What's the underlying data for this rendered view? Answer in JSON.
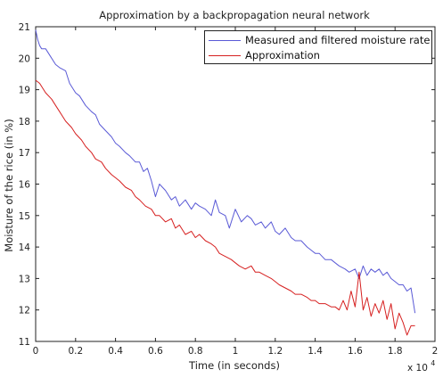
{
  "chart_data": {
    "type": "line",
    "title": "Approximation by a backpropagation neural network",
    "xlabel": "Time (in seconds)",
    "ylabel": "Moisture of the rice (in %)",
    "x_multiplier_label": "x 10",
    "x_multiplier_exponent": "4",
    "xlim": [
      0,
      2
    ],
    "ylim": [
      11,
      21
    ],
    "xticks": [
      "0",
      "0.2",
      "0.4",
      "0.6",
      "0.8",
      "1",
      "1.2",
      "1.4",
      "1.6",
      "1.8",
      "2"
    ],
    "yticks": [
      "11",
      "12",
      "13",
      "14",
      "15",
      "16",
      "17",
      "18",
      "19",
      "20",
      "21"
    ],
    "legend_position": "top-right",
    "grid": false,
    "series": [
      {
        "name": "Measured and filtered moisture rate",
        "color": "#5a5ad6",
        "x": [
          0,
          0.01,
          0.02,
          0.03,
          0.05,
          0.07,
          0.1,
          0.12,
          0.15,
          0.17,
          0.2,
          0.22,
          0.25,
          0.28,
          0.3,
          0.32,
          0.35,
          0.38,
          0.4,
          0.42,
          0.45,
          0.47,
          0.5,
          0.52,
          0.54,
          0.56,
          0.58,
          0.6,
          0.62,
          0.65,
          0.68,
          0.7,
          0.72,
          0.75,
          0.78,
          0.8,
          0.82,
          0.85,
          0.88,
          0.9,
          0.92,
          0.95,
          0.97,
          1.0,
          1.03,
          1.06,
          1.08,
          1.1,
          1.13,
          1.15,
          1.18,
          1.2,
          1.22,
          1.25,
          1.28,
          1.3,
          1.33,
          1.36,
          1.38,
          1.4,
          1.42,
          1.45,
          1.48,
          1.5,
          1.52,
          1.55,
          1.57,
          1.6,
          1.62,
          1.64,
          1.66,
          1.68,
          1.7,
          1.72,
          1.74,
          1.76,
          1.78,
          1.8,
          1.82,
          1.84,
          1.86,
          1.88,
          1.9
        ],
        "values": [
          20.9,
          20.6,
          20.4,
          20.3,
          20.3,
          20.1,
          19.8,
          19.7,
          19.6,
          19.2,
          18.9,
          18.8,
          18.5,
          18.3,
          18.2,
          17.9,
          17.7,
          17.5,
          17.3,
          17.2,
          17.0,
          16.9,
          16.7,
          16.7,
          16.4,
          16.5,
          16.1,
          15.6,
          16.0,
          15.8,
          15.5,
          15.6,
          15.3,
          15.5,
          15.2,
          15.4,
          15.3,
          15.2,
          15.0,
          15.5,
          15.1,
          15.0,
          14.6,
          15.2,
          14.8,
          15.0,
          14.9,
          14.7,
          14.8,
          14.6,
          14.8,
          14.5,
          14.4,
          14.6,
          14.3,
          14.2,
          14.2,
          14.0,
          13.9,
          13.8,
          13.8,
          13.6,
          13.6,
          13.5,
          13.4,
          13.3,
          13.2,
          13.3,
          13.0,
          13.4,
          13.1,
          13.3,
          13.2,
          13.3,
          13.1,
          13.2,
          13.0,
          12.9,
          12.8,
          12.8,
          12.6,
          12.7,
          11.9
        ]
      },
      {
        "name": "Approximation",
        "color": "#d62020",
        "x": [
          0,
          0.02,
          0.05,
          0.08,
          0.1,
          0.12,
          0.15,
          0.18,
          0.2,
          0.23,
          0.25,
          0.28,
          0.3,
          0.33,
          0.35,
          0.38,
          0.4,
          0.42,
          0.45,
          0.48,
          0.5,
          0.52,
          0.55,
          0.58,
          0.6,
          0.62,
          0.65,
          0.68,
          0.7,
          0.72,
          0.75,
          0.78,
          0.8,
          0.82,
          0.85,
          0.88,
          0.9,
          0.92,
          0.95,
          0.98,
          1.0,
          1.02,
          1.05,
          1.08,
          1.1,
          1.12,
          1.15,
          1.18,
          1.2,
          1.22,
          1.25,
          1.28,
          1.3,
          1.33,
          1.36,
          1.38,
          1.4,
          1.42,
          1.45,
          1.48,
          1.5,
          1.52,
          1.54,
          1.56,
          1.58,
          1.6,
          1.62,
          1.64,
          1.66,
          1.68,
          1.7,
          1.72,
          1.74,
          1.76,
          1.78,
          1.8,
          1.82,
          1.84,
          1.86,
          1.88,
          1.9
        ],
        "values": [
          19.3,
          19.2,
          18.9,
          18.7,
          18.5,
          18.3,
          18.0,
          17.8,
          17.6,
          17.4,
          17.2,
          17.0,
          16.8,
          16.7,
          16.5,
          16.3,
          16.2,
          16.1,
          15.9,
          15.8,
          15.6,
          15.5,
          15.3,
          15.2,
          15.0,
          15.0,
          14.8,
          14.9,
          14.6,
          14.7,
          14.4,
          14.5,
          14.3,
          14.4,
          14.2,
          14.1,
          14.0,
          13.8,
          13.7,
          13.6,
          13.5,
          13.4,
          13.3,
          13.4,
          13.2,
          13.2,
          13.1,
          13.0,
          12.9,
          12.8,
          12.7,
          12.6,
          12.5,
          12.5,
          12.4,
          12.3,
          12.3,
          12.2,
          12.2,
          12.1,
          12.1,
          12.0,
          12.3,
          12.0,
          12.6,
          12.1,
          13.2,
          12.0,
          12.4,
          11.8,
          12.2,
          11.9,
          12.3,
          11.7,
          12.2,
          11.4,
          11.9,
          11.6,
          11.2,
          11.5,
          11.5
        ]
      }
    ]
  }
}
